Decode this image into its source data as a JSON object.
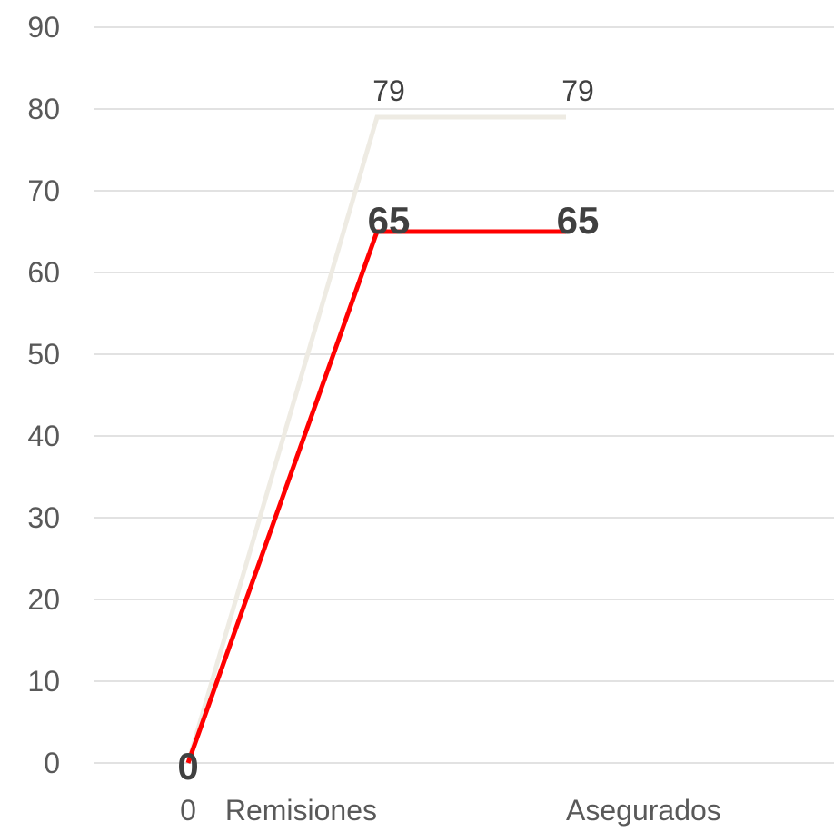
{
  "chart_data": {
    "type": "line",
    "title": "",
    "xlabel": "",
    "ylabel": "",
    "categories": [
      "0",
      "Remisiones",
      "Asegurados"
    ],
    "ylim": [
      0,
      90
    ],
    "yticks": [
      0,
      10,
      20,
      30,
      40,
      50,
      60,
      70,
      80,
      90
    ],
    "grid": true,
    "legend": "none",
    "series": [
      {
        "values": [
          0,
          79,
          79
        ],
        "color": "#eeebe3",
        "data_labels": [
          "",
          "79",
          "79"
        ],
        "label_style": "normal"
      },
      {
        "values": [
          0,
          65,
          65
        ],
        "color": "#ff0000",
        "data_labels": [
          "0",
          "65",
          "65"
        ],
        "label_style": "bold"
      }
    ]
  }
}
